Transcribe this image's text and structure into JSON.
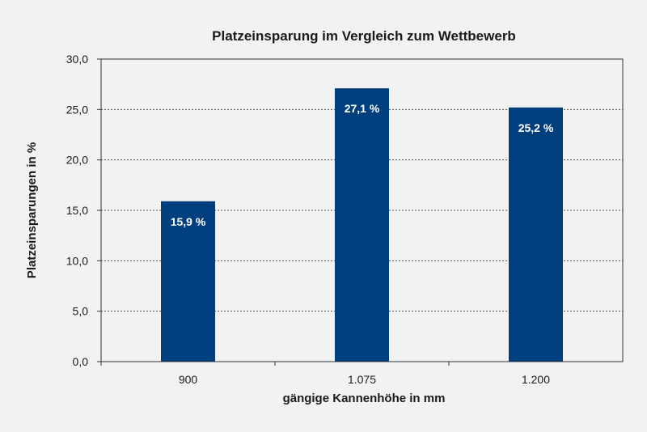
{
  "chart_data": {
    "type": "bar",
    "title": "Platzeinsparung im Vergleich zum Wettbewerb",
    "xlabel": "gängige Kannenhöhe in mm",
    "ylabel": "Platzeinsparungen in %",
    "categories": [
      "900",
      "1.075",
      "1.200"
    ],
    "values": [
      15.9,
      27.1,
      25.2
    ],
    "value_labels": [
      "15,9 %",
      "27,1 %",
      "25,2 %"
    ],
    "yticks": [
      "0,0",
      "5,0",
      "10,0",
      "15,0",
      "20,0",
      "25,0",
      "30,0"
    ],
    "ylim": [
      0,
      30
    ],
    "grid": true,
    "bar_color": "#003f7d"
  }
}
